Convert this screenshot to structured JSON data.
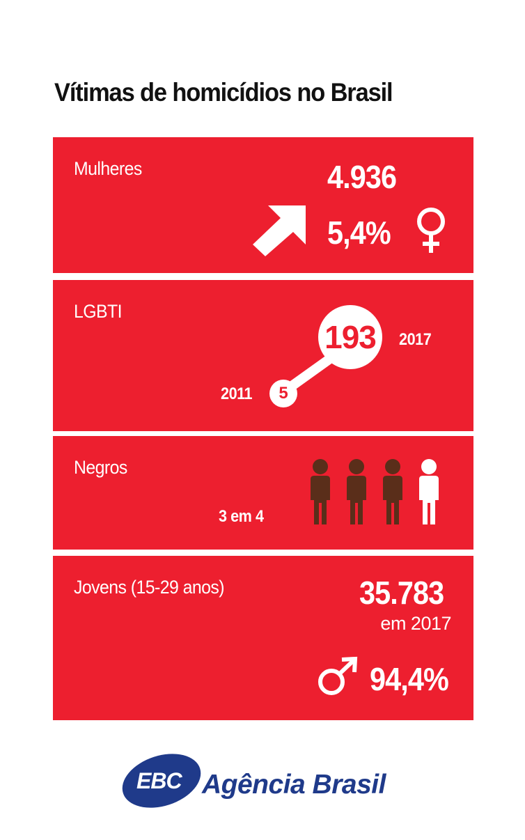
{
  "title": "Vítimas de homicídios no Brasil",
  "mulheres": {
    "label": "Mulheres",
    "value": "4.936",
    "percent": "5,4%",
    "arrow_icon": "arrow-up-right-icon",
    "symbol_icon": "female-symbol-icon"
  },
  "lgbti": {
    "label": "LGBTI",
    "value_2017": "193",
    "year_2017": "2017",
    "value_2011": "5",
    "year_2011": "2011"
  },
  "negros": {
    "label": "Negros",
    "ratio": "3 em 4",
    "people_total": 4,
    "people_highlighted": 3,
    "highlight_color": "#5a2e1a",
    "other_color": "#ffffff"
  },
  "jovens": {
    "label": "Jovens (15-29 anos)",
    "value": "35.783",
    "sub": "em 2017",
    "percent": "94,4%",
    "symbol_icon": "male-symbol-icon"
  },
  "logo": {
    "badge": "EBC",
    "name": "Agência Brasil"
  },
  "colors": {
    "panel": "#ed1f2f",
    "logo_blue": "#1f3a8a"
  }
}
